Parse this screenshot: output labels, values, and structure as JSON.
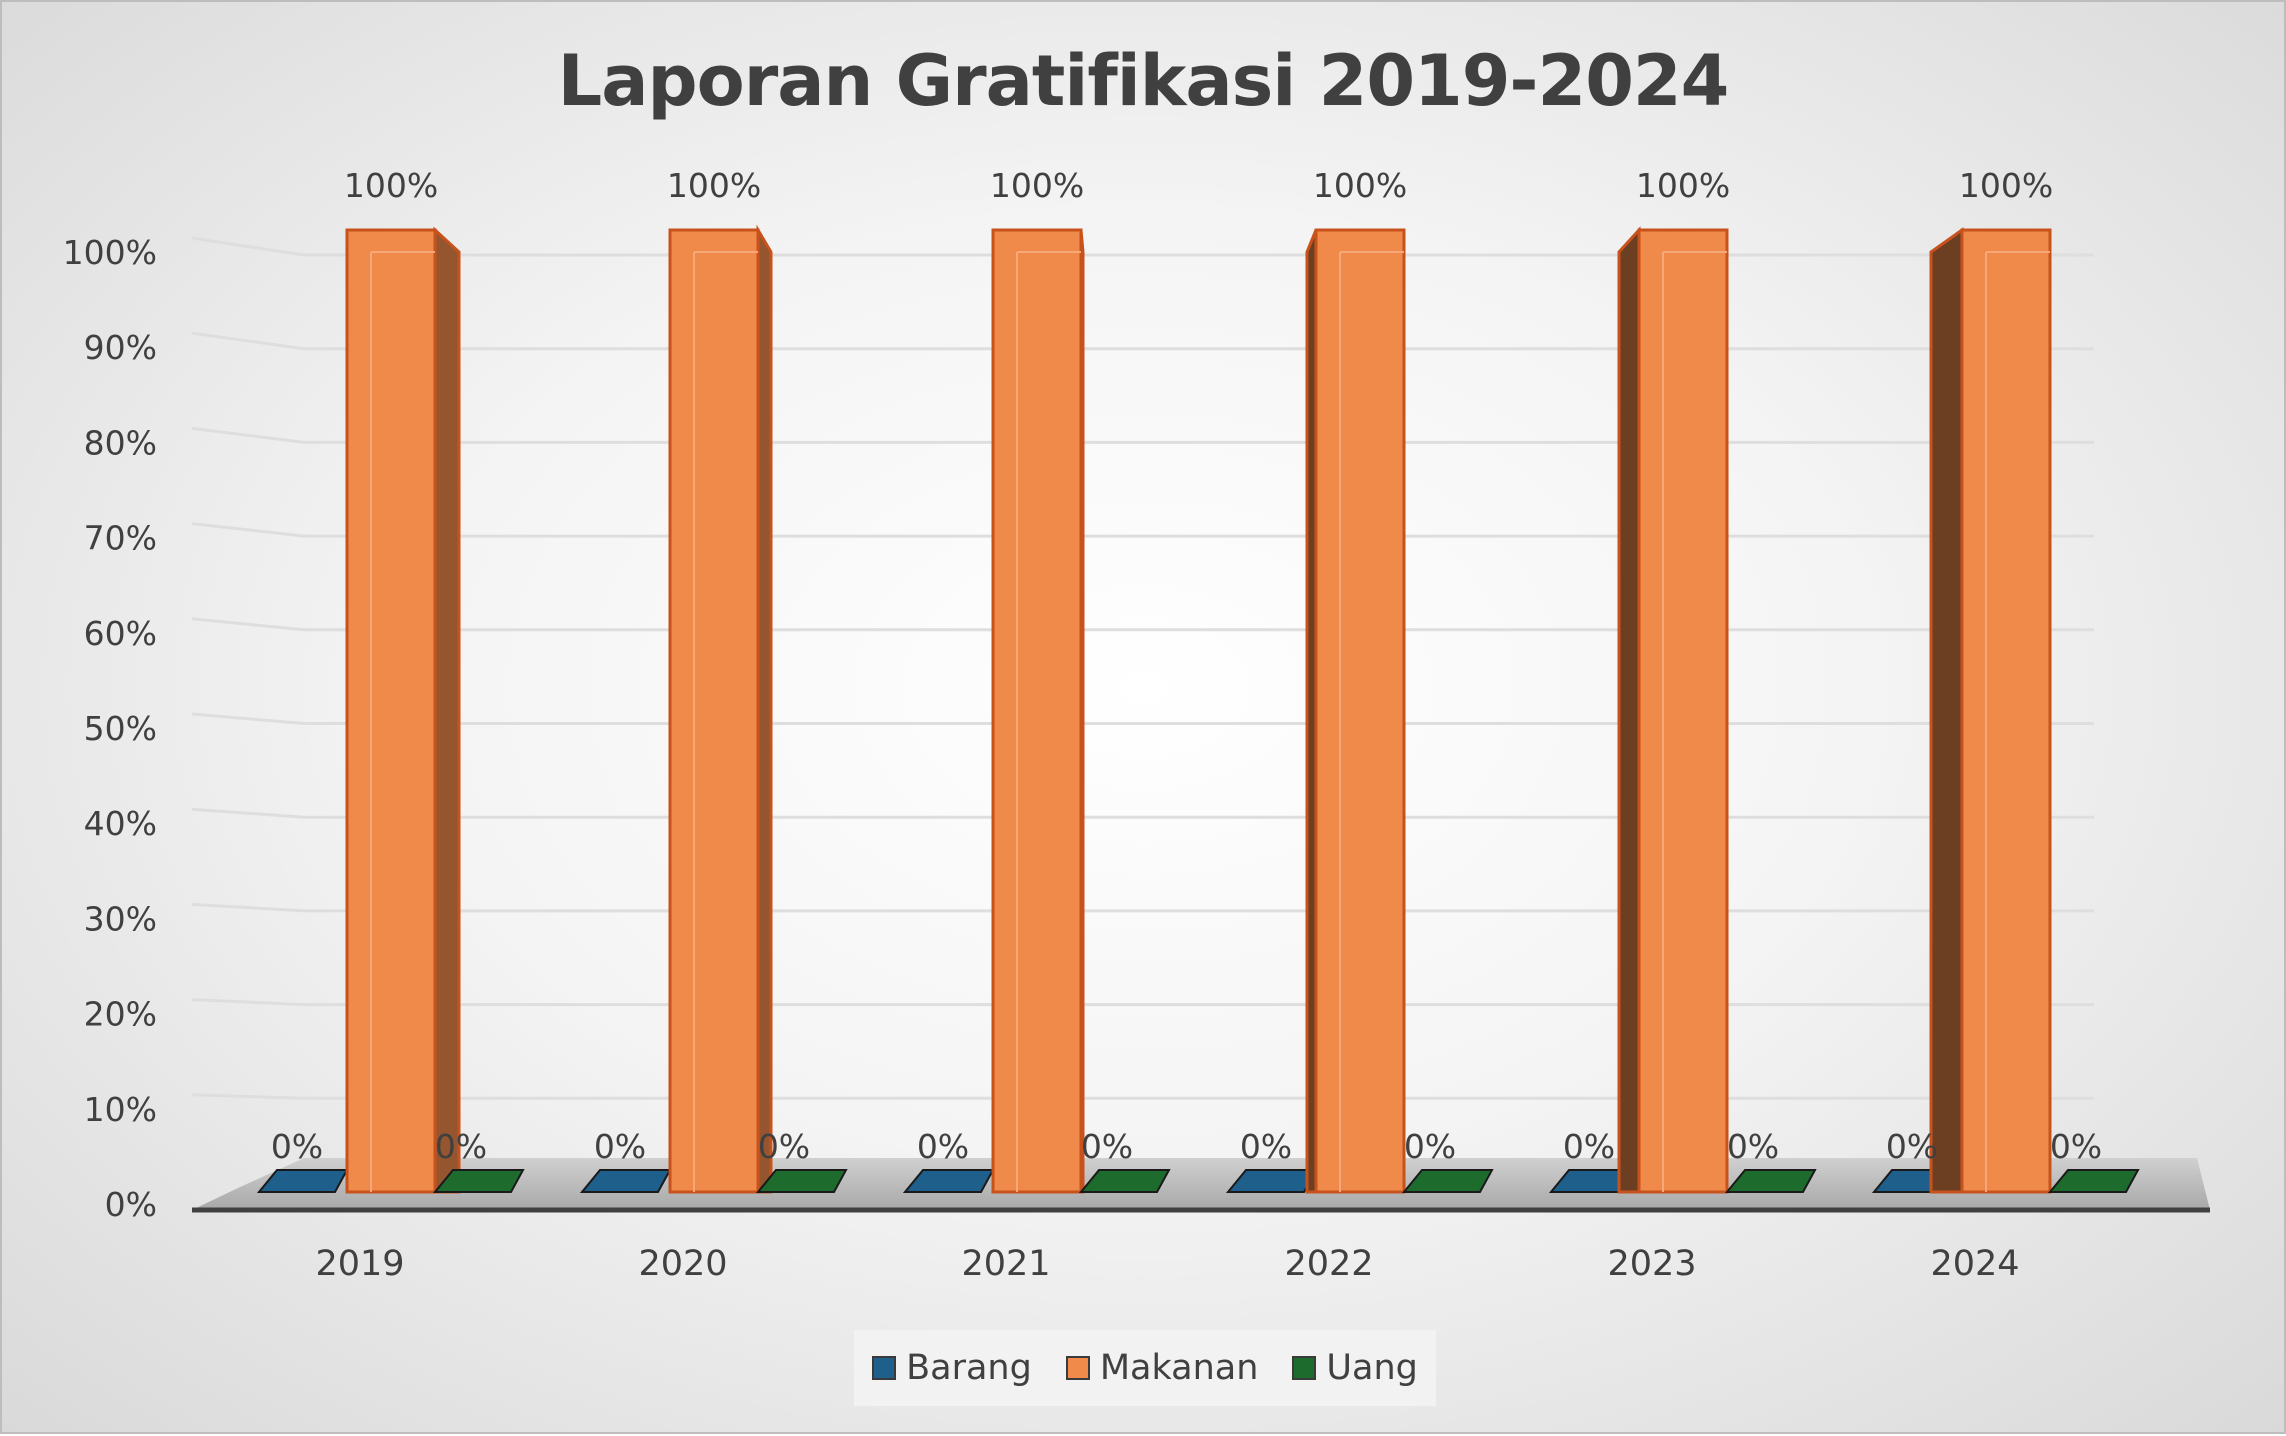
{
  "chart_data": {
    "type": "bar",
    "title": "Laporan Gratifikasi 2019-2024",
    "categories": [
      "2019",
      "2020",
      "2021",
      "2022",
      "2023",
      "2024"
    ],
    "series": [
      {
        "name": "Barang",
        "values": [
          0,
          0,
          0,
          0,
          0,
          0
        ],
        "labels": [
          "0%",
          "0%",
          "0%",
          "0%",
          "0%",
          "0%"
        ],
        "color": "#1F5F8B"
      },
      {
        "name": "Makanan",
        "values": [
          100,
          100,
          100,
          100,
          100,
          100
        ],
        "labels": [
          "100%",
          "100%",
          "100%",
          "100%",
          "100%",
          "100%"
        ],
        "color": "#F08A4B"
      },
      {
        "name": "Uang",
        "values": [
          0,
          0,
          0,
          0,
          0,
          0
        ],
        "labels": [
          "0%",
          "0%",
          "0%",
          "0%",
          "0%",
          "0%"
        ],
        "color": "#1E6B2E"
      }
    ],
    "y_ticks": [
      "0%",
      "10%",
      "20%",
      "30%",
      "40%",
      "50%",
      "60%",
      "70%",
      "80%",
      "90%",
      "100%"
    ],
    "ylim": [
      0,
      100
    ],
    "y_format": "percent",
    "grid": true,
    "style": "3d-clustered-column",
    "legend_position": "bottom"
  }
}
